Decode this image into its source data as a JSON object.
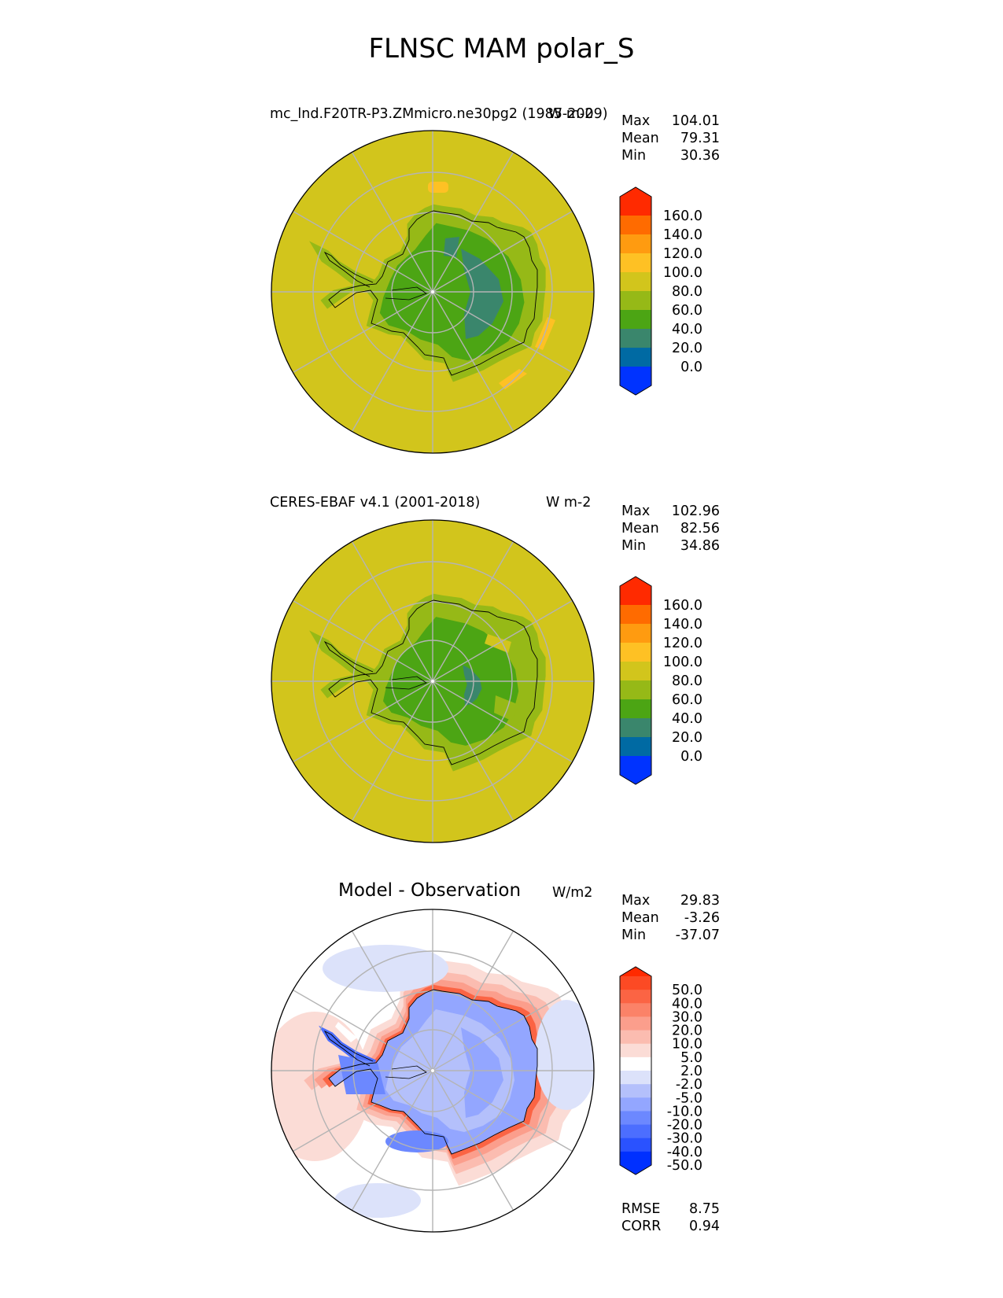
{
  "title": "FLNSC MAM polar_S",
  "panels": [
    {
      "title_left": "mc_lnd.F20TR-P3.ZMmicro.ne30pg2 (1985-2009)",
      "title_right": "W m-2",
      "stats": [
        {
          "label": "Max",
          "value": "104.01"
        },
        {
          "label": "Mean",
          "value": "79.31"
        },
        {
          "label": "Min",
          "value": "30.36"
        }
      ],
      "colorbar": {
        "colors": [
          "#0033ff",
          "#006aa3",
          "#3a866c",
          "#4ca514",
          "#96b917",
          "#d2c51c",
          "#fec124",
          "#ff9b10",
          "#ff6b00",
          "#ff2a00"
        ],
        "extend_low": "#0033ff",
        "extend_high": "#ff2a00",
        "tick_labels": [
          "160.0",
          "140.0",
          "120.0",
          "100.0",
          "80.0",
          "60.0",
          "40.0",
          "20.0",
          "0.0"
        ]
      },
      "map": {
        "ocean_color": "#d2c51c",
        "field": "model"
      }
    },
    {
      "title_left": "CERES-EBAF v4.1 (2001-2018)",
      "title_right": "W m-2",
      "stats": [
        {
          "label": "Max",
          "value": "102.96"
        },
        {
          "label": "Mean",
          "value": "82.56"
        },
        {
          "label": "Min",
          "value": "34.86"
        }
      ],
      "colorbar": {
        "colors": [
          "#0033ff",
          "#006aa3",
          "#3a866c",
          "#4ca514",
          "#96b917",
          "#d2c51c",
          "#fec124",
          "#ff9b10",
          "#ff6b00",
          "#ff2a00"
        ],
        "extend_low": "#0033ff",
        "extend_high": "#ff2a00",
        "tick_labels": [
          "160.0",
          "140.0",
          "120.0",
          "100.0",
          "80.0",
          "60.0",
          "40.0",
          "20.0",
          "0.0"
        ]
      },
      "map": {
        "ocean_color": "#d2c51c",
        "field": "obs"
      }
    },
    {
      "title_center": "Model - Observation",
      "title_right": "W/m2",
      "stats": [
        {
          "label": "Max",
          "value": "29.83"
        },
        {
          "label": "Mean",
          "value": "-3.26"
        },
        {
          "label": "Min",
          "value": "-37.07"
        }
      ],
      "colorbar": {
        "colors": [
          "#0030ff",
          "#2a52ff",
          "#4c6eff",
          "#6c88ff",
          "#93a6ff",
          "#b4c0fb",
          "#dce2fa",
          "#ffffff",
          "#fbdcd6",
          "#fbbcb0",
          "#fb9e8c",
          "#fb8268",
          "#fb6444",
          "#fc4a24"
        ],
        "extend_low": "#0030ff",
        "extend_high": "#ff2a00",
        "tick_labels": [
          "50.0",
          "40.0",
          "30.0",
          "20.0",
          "10.0",
          "5.0",
          "2.0",
          "-2.0",
          "-5.0",
          "-10.0",
          "-20.0",
          "-30.0",
          "-40.0",
          "-50.0"
        ]
      },
      "map": {
        "ocean_color": "#ffffff",
        "field": "diff"
      },
      "extra_stats": [
        {
          "label": "RMSE",
          "value": "8.75"
        },
        {
          "label": "CORR",
          "value": "0.94"
        }
      ]
    }
  ]
}
